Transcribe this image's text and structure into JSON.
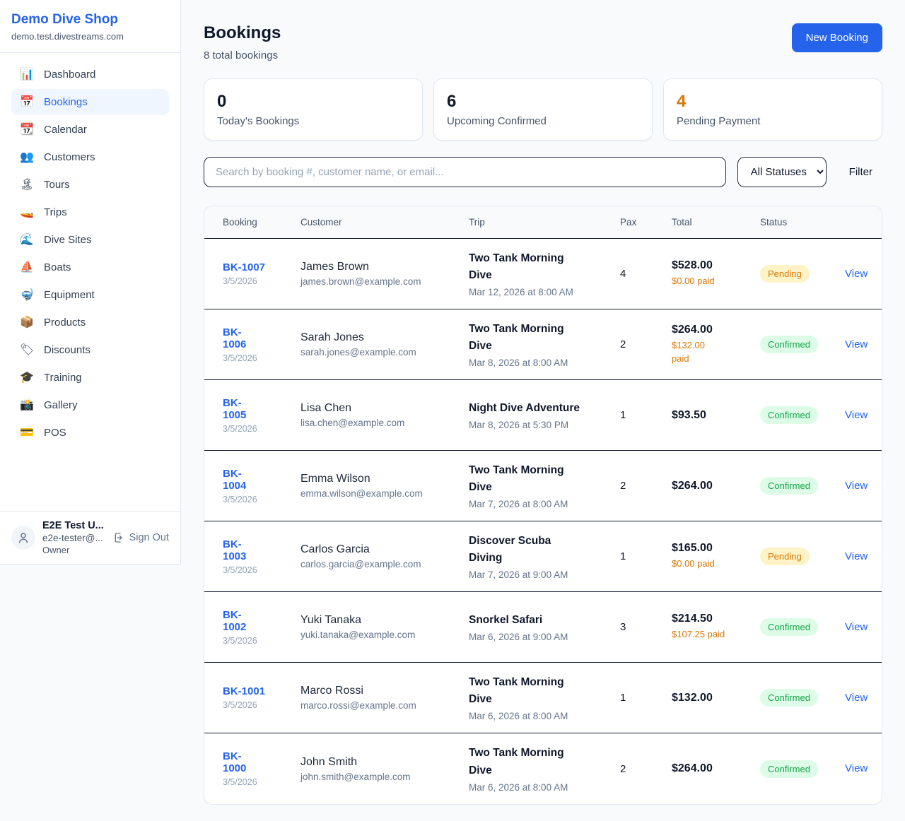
{
  "colors": {
    "accent": "#2563eb",
    "pending_text": "#d97706",
    "pending_bg": "#fef3c7",
    "confirmed_text": "#16a34a",
    "confirmed_bg": "#dcfce7",
    "page_bg": "#f8fafc"
  },
  "sidebar": {
    "shop_name": "Demo Dive Shop",
    "domain": "demo.test.divestreams.com",
    "items": [
      {
        "icon": "📊",
        "icon_name": "dashboard-icon",
        "label": "Dashboard",
        "active": false
      },
      {
        "icon": "📅",
        "icon_name": "bookings-icon",
        "label": "Bookings",
        "active": true
      },
      {
        "icon": "📆",
        "icon_name": "calendar-icon",
        "label": "Calendar",
        "active": false
      },
      {
        "icon": "👥",
        "icon_name": "customers-icon",
        "label": "Customers",
        "active": false
      },
      {
        "icon": "🏝",
        "icon_name": "tours-icon",
        "label": "Tours",
        "active": false
      },
      {
        "icon": "🚤",
        "icon_name": "trips-icon",
        "label": "Trips",
        "active": false
      },
      {
        "icon": "🌊",
        "icon_name": "dive-sites-icon",
        "label": "Dive Sites",
        "active": false
      },
      {
        "icon": "⛵",
        "icon_name": "boats-icon",
        "label": "Boats",
        "active": false
      },
      {
        "icon": "🤿",
        "icon_name": "equipment-icon",
        "label": "Equipment",
        "active": false
      },
      {
        "icon": "📦",
        "icon_name": "products-icon",
        "label": "Products",
        "active": false
      },
      {
        "icon": "🏷",
        "icon_name": "discounts-icon",
        "label": "Discounts",
        "active": false
      },
      {
        "icon": "🎓",
        "icon_name": "training-icon",
        "label": "Training",
        "active": false
      },
      {
        "icon": "📸",
        "icon_name": "gallery-icon",
        "label": "Gallery",
        "active": false
      },
      {
        "icon": "💳",
        "icon_name": "pos-icon",
        "label": "POS",
        "active": false
      }
    ],
    "user": {
      "name": "E2E Test U...",
      "email": "e2e-tester@...",
      "role": "Owner",
      "sign_out_label": "Sign Out"
    }
  },
  "header": {
    "title": "Bookings",
    "subtitle": "8 total bookings",
    "new_booking_label": "New Booking"
  },
  "stats": [
    {
      "value": "0",
      "label": "Today's Bookings",
      "accent": false
    },
    {
      "value": "6",
      "label": "Upcoming Confirmed",
      "accent": false
    },
    {
      "value": "4",
      "label": "Pending Payment",
      "accent": true
    }
  ],
  "controls": {
    "search_placeholder": "Search by booking #, customer name, or email...",
    "status_filter_value": "All Statuses",
    "filter_label": "Filter"
  },
  "table": {
    "headers": [
      "Booking",
      "Customer",
      "Trip",
      "Pax",
      "Total",
      "Status"
    ],
    "view_label": "View",
    "rows": [
      {
        "id": "BK-1007",
        "date": "3/5/2026",
        "name": "James Brown",
        "email": "james.brown@example.com",
        "trip": "Two Tank Morning\nDive",
        "trip_date": "Mar 12, 2026 at 8:00 AM",
        "pax": "4",
        "total": "$528.00",
        "paid": "$0.00 paid",
        "status": "Pending"
      },
      {
        "id": "BK-\n1006",
        "date": "3/5/2026",
        "name": "Sarah Jones",
        "email": "sarah.jones@example.com",
        "trip": "Two Tank Morning\nDive",
        "trip_date": "Mar 8, 2026 at 8:00 AM",
        "pax": "2",
        "total": "$264.00",
        "paid": "$132.00\npaid",
        "status": "Confirmed"
      },
      {
        "id": "BK-\n1005",
        "date": "3/5/2026",
        "name": "Lisa Chen",
        "email": "lisa.chen@example.com",
        "trip": "Night Dive Adventure",
        "trip_date": "Mar 8, 2026 at 5:30 PM",
        "pax": "1",
        "total": "$93.50",
        "paid": null,
        "status": "Confirmed"
      },
      {
        "id": "BK-\n1004",
        "date": "3/5/2026",
        "name": "Emma Wilson",
        "email": "emma.wilson@example.com",
        "trip": "Two Tank Morning\nDive",
        "trip_date": "Mar 7, 2026 at 8:00 AM",
        "pax": "2",
        "total": "$264.00",
        "paid": null,
        "status": "Confirmed"
      },
      {
        "id": "BK-\n1003",
        "date": "3/5/2026",
        "name": "Carlos Garcia",
        "email": "carlos.garcia@example.com",
        "trip": "Discover Scuba\nDiving",
        "trip_date": "Mar 7, 2026 at 9:00 AM",
        "pax": "1",
        "total": "$165.00",
        "paid": "$0.00 paid",
        "status": "Pending"
      },
      {
        "id": "BK-\n1002",
        "date": "3/5/2026",
        "name": "Yuki Tanaka",
        "email": "yuki.tanaka@example.com",
        "trip": "Snorkel Safari",
        "trip_date": "Mar 6, 2026 at 9:00 AM",
        "pax": "3",
        "total": "$214.50",
        "paid": "$107.25 paid",
        "status": "Confirmed"
      },
      {
        "id": "BK-1001",
        "date": "3/5/2026",
        "name": "Marco Rossi",
        "email": "marco.rossi@example.com",
        "trip": "Two Tank Morning\nDive",
        "trip_date": "Mar 6, 2026 at 8:00 AM",
        "pax": "1",
        "total": "$132.00",
        "paid": null,
        "status": "Confirmed"
      },
      {
        "id": "BK-\n1000",
        "date": "3/5/2026",
        "name": "John Smith",
        "email": "john.smith@example.com",
        "trip": "Two Tank Morning\nDive",
        "trip_date": "Mar 6, 2026 at 8:00 AM",
        "pax": "2",
        "total": "$264.00",
        "paid": null,
        "status": "Confirmed"
      }
    ]
  }
}
